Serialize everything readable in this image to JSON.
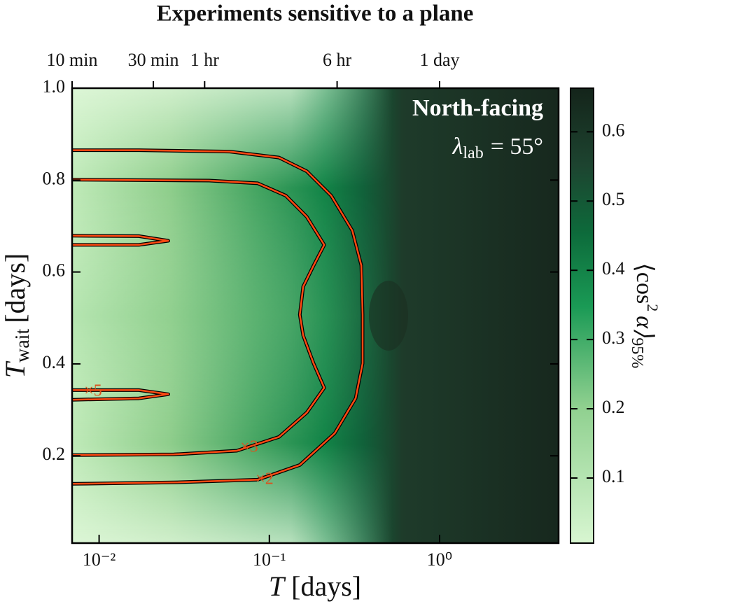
{
  "chart_data": {
    "type": "contour",
    "title": "Experiments sensitive to a plane",
    "annotation": {
      "title": "North-facing",
      "symbol": "λ",
      "subscript": "lab",
      "text": "= 55°"
    },
    "xlabel": {
      "symbol": "T",
      "text": "[days]"
    },
    "ylabel": {
      "symbol": "T",
      "subscript": "wait",
      "text": "[days]"
    },
    "xscale": "log",
    "xlim": [
      0.00694,
      5
    ],
    "xticks": [
      {
        "value": 0.01,
        "label": "10⁻²"
      },
      {
        "value": 0.1,
        "label": "10⁻¹"
      },
      {
        "value": 1,
        "label": "10⁰"
      }
    ],
    "x2ticks": [
      {
        "value": 0.00694,
        "label": "10 min"
      },
      {
        "value": 0.02083,
        "label": "30 min"
      },
      {
        "value": 0.04167,
        "label": "1 hr"
      },
      {
        "value": 0.25,
        "label": "6 hr"
      },
      {
        "value": 1,
        "label": "1 day"
      }
    ],
    "ylim": [
      0.01,
      1.0
    ],
    "yticks": [
      {
        "value": 0.2,
        "label": "0.2"
      },
      {
        "value": 0.4,
        "label": "0.4"
      },
      {
        "value": 0.6,
        "label": "0.6"
      },
      {
        "value": 0.8,
        "label": "0.8"
      },
      {
        "value": 1.0,
        "label": "1.0"
      }
    ],
    "colorbar": {
      "label": {
        "prefix": "⟨cos",
        "power": "2",
        "symbol": "α⟩",
        "subscript": "95%"
      },
      "lim": [
        0.006,
        0.663
      ],
      "ticks": [
        0.1,
        0.2,
        0.3,
        0.4,
        0.5,
        0.6
      ]
    },
    "contour_color": "#ff4a12",
    "contours": [
      {
        "label": "×2",
        "x": [
          0.00694,
          0.0275,
          0.0855,
          0.151,
          0.242,
          0.321,
          0.353,
          0.353,
          0.347,
          0.307,
          0.231,
          0.166,
          0.114,
          0.0586,
          0.0171,
          0.00694
        ],
        "y": [
          0.139,
          0.142,
          0.148,
          0.18,
          0.249,
          0.325,
          0.401,
          0.507,
          0.614,
          0.69,
          0.766,
          0.819,
          0.849,
          0.862,
          0.865,
          0.865
        ]
      },
      {
        "label": "×3",
        "x": [
          0.00694,
          0.0275,
          0.0644,
          0.114,
          0.166,
          0.21,
          0.182,
          0.158,
          0.151,
          0.158,
          0.182,
          0.21,
          0.166,
          0.125,
          0.0855,
          0.0442,
          0.00694
        ],
        "y": [
          0.2015,
          0.203,
          0.211,
          0.241,
          0.294,
          0.348,
          0.401,
          0.462,
          0.507,
          0.568,
          0.614,
          0.659,
          0.72,
          0.766,
          0.793,
          0.799,
          0.801
        ]
      },
      {
        "label": "×5",
        "x": [
          0.00694,
          0.0171,
          0.0255,
          0.0171,
          0.00694
        ],
        "y": [
          0.343,
          0.343,
          0.334,
          0.325,
          0.322
        ]
      },
      {
        "x": [
          0.00694,
          0.0171,
          0.0255,
          0.0171,
          0.00694
        ],
        "y": [
          0.679,
          0.678,
          0.668,
          0.659,
          0.659
        ]
      }
    ]
  }
}
